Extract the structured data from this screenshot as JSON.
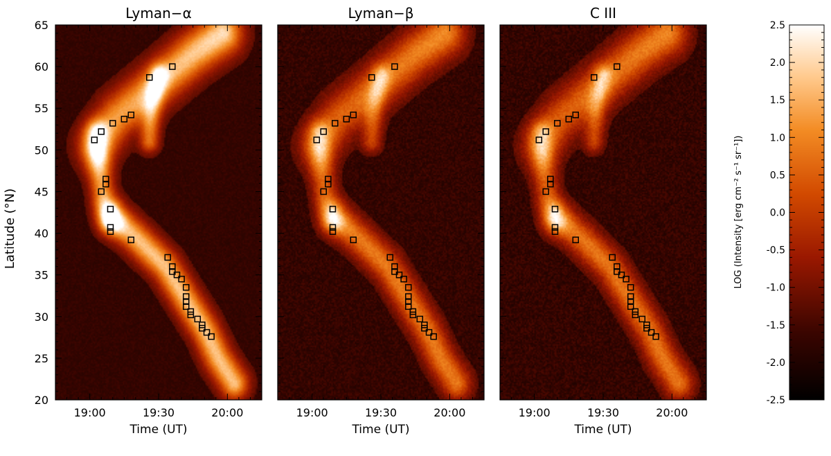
{
  "chart_data": {
    "type": "heatmap",
    "panels": [
      {
        "title": "Lyman−α",
        "intensity_scale": 1.0,
        "noise": 0.55
      },
      {
        "title": "Lyman−β",
        "intensity_scale": 0.72,
        "noise": 0.9
      },
      {
        "title": "C III",
        "intensity_scale": 0.7,
        "noise": 1.0
      }
    ],
    "xlabel": "Time (UT)",
    "ylabel": "Latitude (°N)",
    "xlim": [
      "18:45",
      "20:15"
    ],
    "ylim": [
      20,
      65
    ],
    "x_tick_labels": [
      "19:00",
      "19:30",
      "20:00"
    ],
    "y_tick_labels": [
      "20",
      "25",
      "30",
      "35",
      "40",
      "45",
      "50",
      "55",
      "60",
      "65"
    ],
    "colorbar": {
      "label": "LOG (Intensity [erg cm⁻² s⁻¹ sr⁻¹])",
      "range": [
        -2.5,
        2.5
      ],
      "tick_labels": [
        "-2.5",
        "-2.0",
        "-1.5",
        "-1.0",
        "-0.5",
        "0.0",
        "0.5",
        "1.0",
        "1.5",
        "2.0",
        "2.5"
      ]
    },
    "markers": {
      "shape": "square",
      "points": [
        {
          "time": "19:36",
          "lat": 60.0
        },
        {
          "time": "19:26",
          "lat": 58.7
        },
        {
          "time": "19:18",
          "lat": 54.2
        },
        {
          "time": "19:15",
          "lat": 53.7
        },
        {
          "time": "19:10",
          "lat": 53.2
        },
        {
          "time": "19:05",
          "lat": 52.2
        },
        {
          "time": "19:02",
          "lat": 51.2
        },
        {
          "time": "19:07",
          "lat": 46.5
        },
        {
          "time": "19:07",
          "lat": 45.9
        },
        {
          "time": "19:05",
          "lat": 45.0
        },
        {
          "time": "19:09",
          "lat": 42.9
        },
        {
          "time": "19:09",
          "lat": 40.7
        },
        {
          "time": "19:09",
          "lat": 40.2
        },
        {
          "time": "19:18",
          "lat": 39.2
        },
        {
          "time": "19:34",
          "lat": 37.1
        },
        {
          "time": "19:36",
          "lat": 36.0
        },
        {
          "time": "19:36",
          "lat": 35.4
        },
        {
          "time": "19:38",
          "lat": 35.0
        },
        {
          "time": "19:40",
          "lat": 34.5
        },
        {
          "time": "19:42",
          "lat": 33.5
        },
        {
          "time": "19:42",
          "lat": 32.4
        },
        {
          "time": "19:42",
          "lat": 31.8
        },
        {
          "time": "19:42",
          "lat": 31.2
        },
        {
          "time": "19:44",
          "lat": 30.6
        },
        {
          "time": "19:44",
          "lat": 30.2
        },
        {
          "time": "19:47",
          "lat": 29.7
        },
        {
          "time": "19:49",
          "lat": 29.0
        },
        {
          "time": "19:49",
          "lat": 28.6
        },
        {
          "time": "19:51",
          "lat": 28.1
        },
        {
          "time": "19:53",
          "lat": 27.6
        }
      ]
    }
  }
}
